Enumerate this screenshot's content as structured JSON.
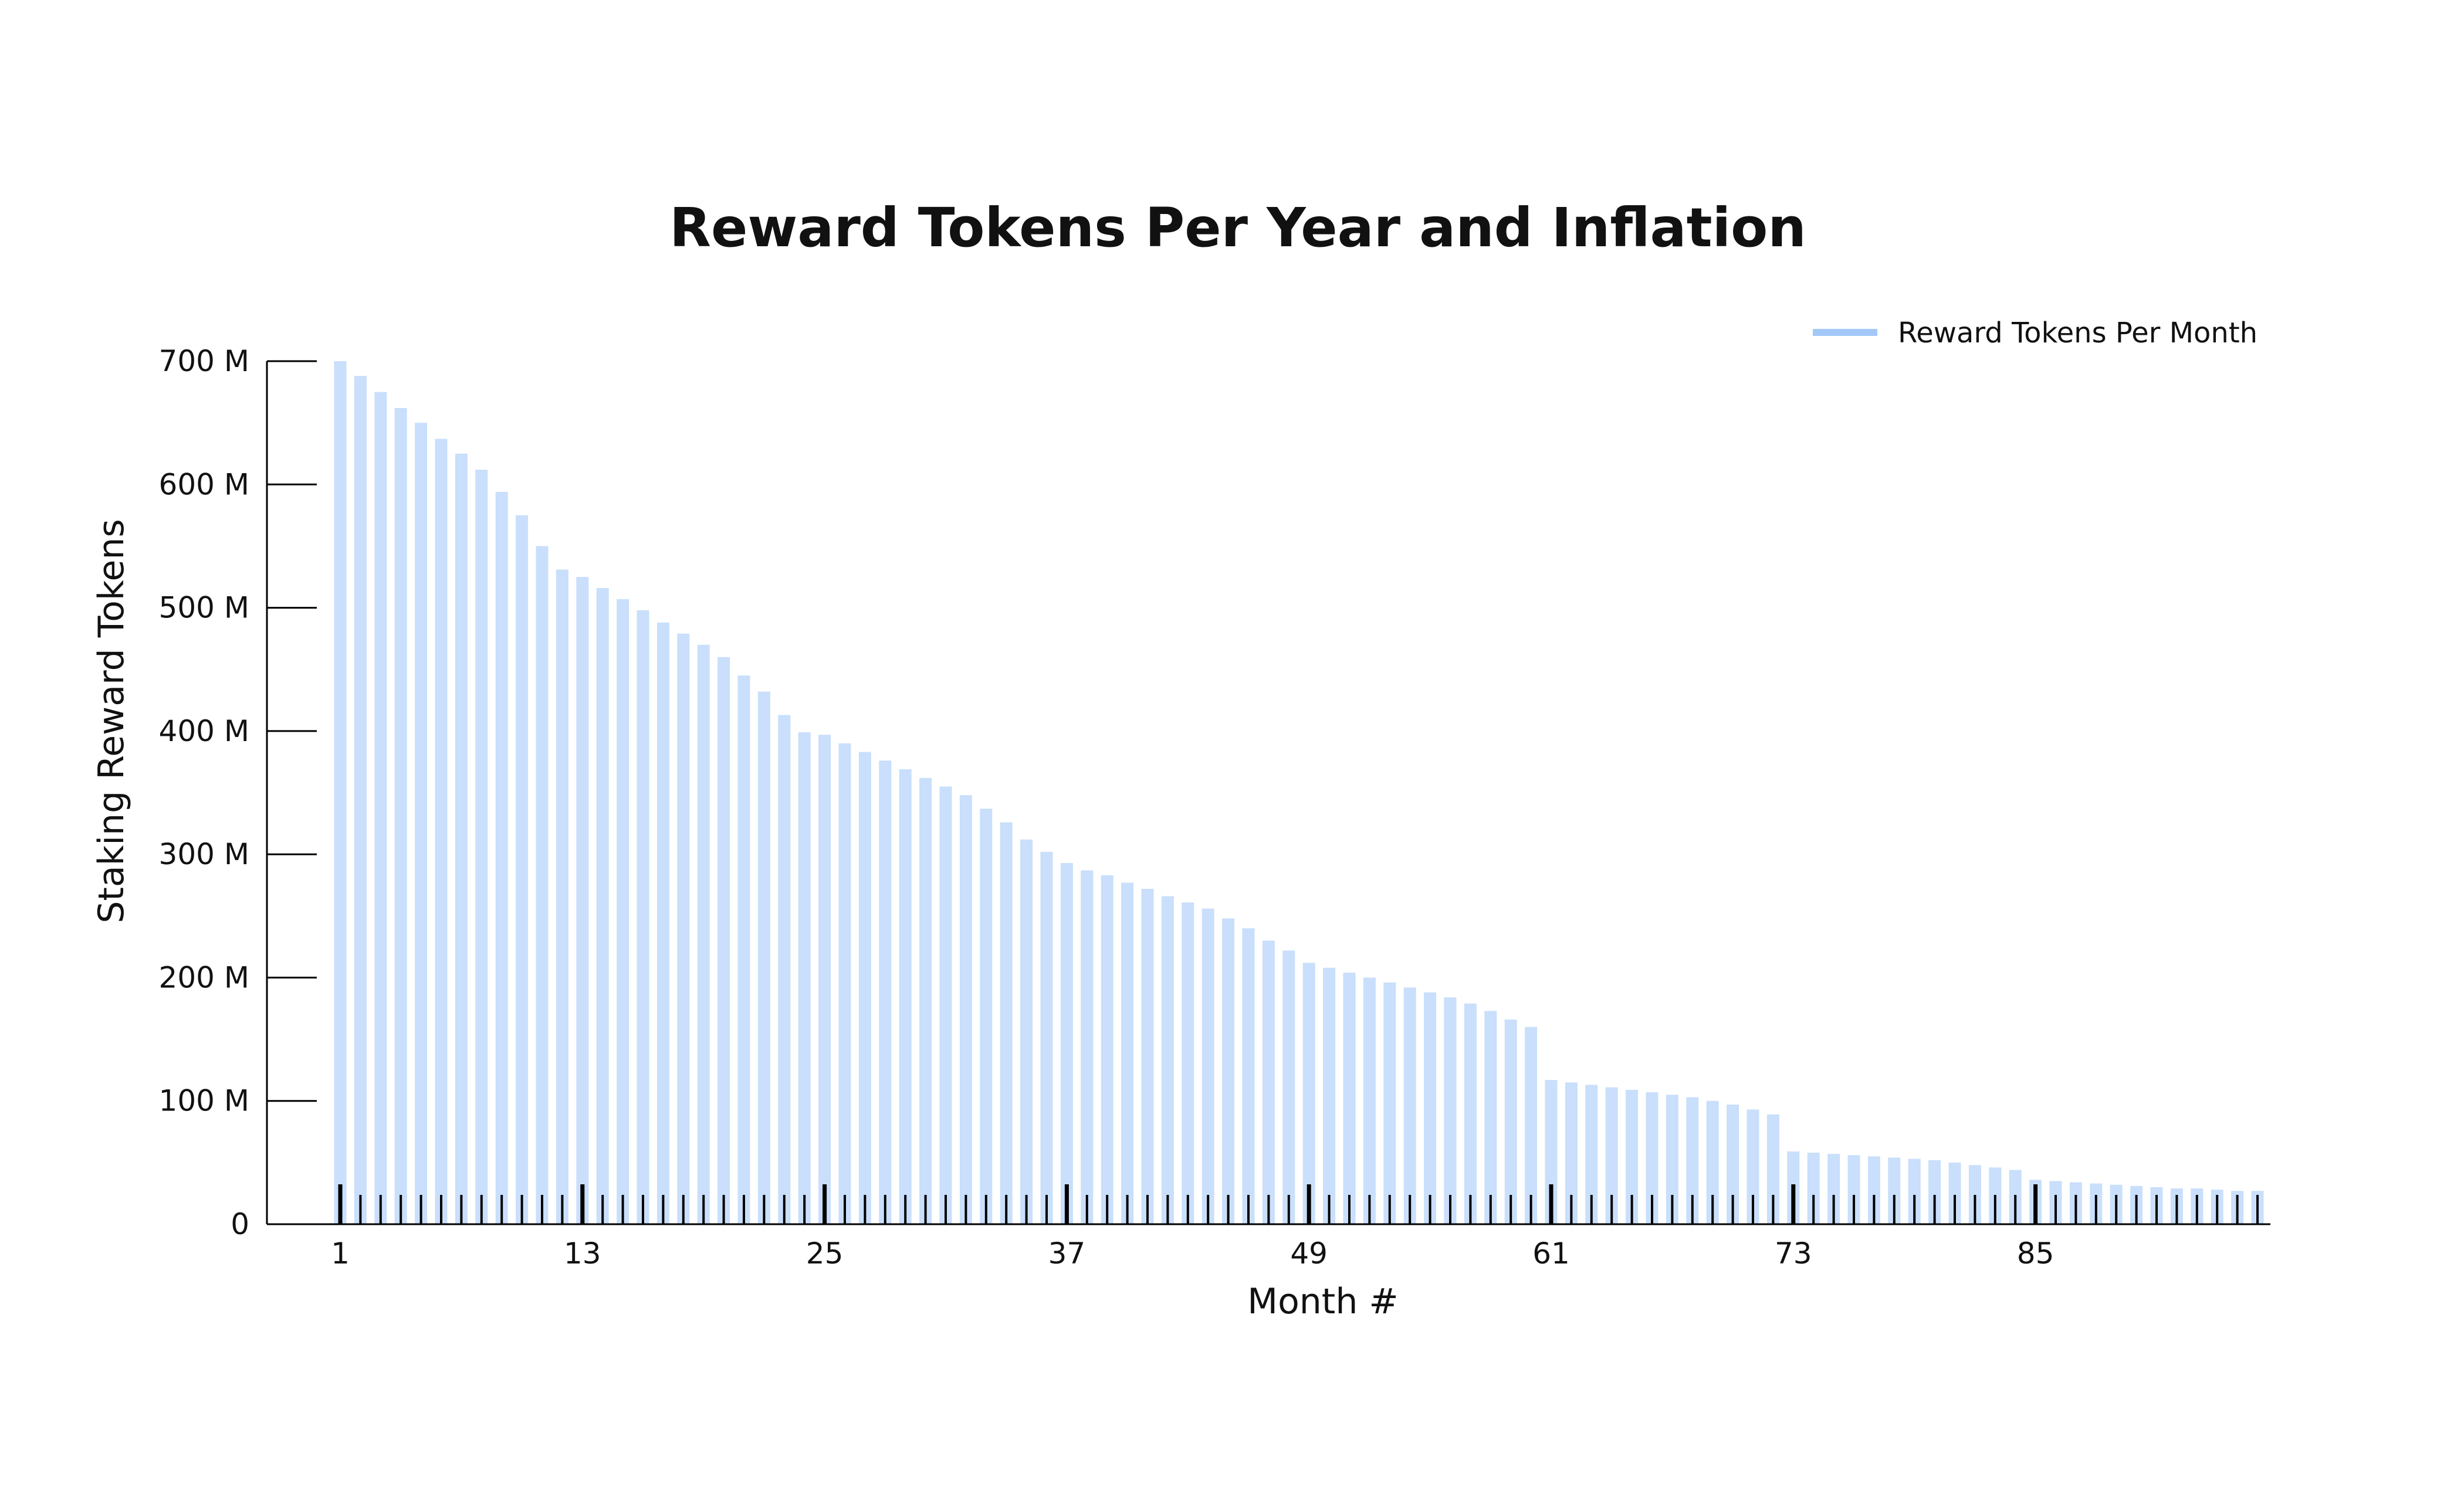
{
  "chart_data": {
    "type": "bar",
    "title": "Reward Tokens Per Year and Inflation",
    "xlabel": "Month #",
    "ylabel": "Staking Reward Tokens",
    "legend": {
      "position": "top-right",
      "entries": [
        "Reward Tokens Per Month"
      ]
    },
    "colors": {
      "bar": "#c9dffb",
      "legend_swatch": "#a3c8f8",
      "axis": "#000000",
      "tick": "#000000"
    },
    "grid": false,
    "ylim": [
      0,
      700000000
    ],
    "yticks": [
      {
        "value": 0,
        "label": "0"
      },
      {
        "value": 100000000,
        "label": "100 M"
      },
      {
        "value": 200000000,
        "label": "200 M"
      },
      {
        "value": 300000000,
        "label": "300 M"
      },
      {
        "value": 400000000,
        "label": "400 M"
      },
      {
        "value": 500000000,
        "label": "500 M"
      },
      {
        "value": 600000000,
        "label": "600 M"
      },
      {
        "value": 700000000,
        "label": "700 M"
      }
    ],
    "xticks": [
      {
        "value": 1,
        "label": "1"
      },
      {
        "value": 13,
        "label": "13"
      },
      {
        "value": 25,
        "label": "25"
      },
      {
        "value": 37,
        "label": "37"
      },
      {
        "value": 49,
        "label": "49"
      },
      {
        "value": 61,
        "label": "61"
      },
      {
        "value": 73,
        "label": "73"
      },
      {
        "value": 85,
        "label": "85"
      }
    ],
    "x": [
      1,
      2,
      3,
      4,
      5,
      6,
      7,
      8,
      9,
      10,
      11,
      12,
      13,
      14,
      15,
      16,
      17,
      18,
      19,
      20,
      21,
      22,
      23,
      24,
      25,
      26,
      27,
      28,
      29,
      30,
      31,
      32,
      33,
      34,
      35,
      36,
      37,
      38,
      39,
      40,
      41,
      42,
      43,
      44,
      45,
      46,
      47,
      48,
      49,
      50,
      51,
      52,
      53,
      54,
      55,
      56,
      57,
      58,
      59,
      60,
      61,
      62,
      63,
      64,
      65,
      66,
      67,
      68,
      69,
      70,
      71,
      72,
      73,
      74,
      75,
      76,
      77,
      78,
      79,
      80,
      81,
      82,
      83,
      84,
      85,
      86,
      87,
      88,
      89,
      90,
      91,
      92,
      93,
      94,
      95,
      96
    ],
    "series": [
      {
        "name": "Reward Tokens Per Month",
        "values": [
          700000000,
          688000000,
          675000000,
          662000000,
          650000000,
          637000000,
          625000000,
          612000000,
          594000000,
          575000000,
          550000000,
          531000000,
          525000000,
          516000000,
          507000000,
          498000000,
          488000000,
          479000000,
          470000000,
          460000000,
          445000000,
          432000000,
          413000000,
          399000000,
          397000000,
          390000000,
          383000000,
          376000000,
          369000000,
          362000000,
          355000000,
          348000000,
          337000000,
          326000000,
          312000000,
          302000000,
          293000000,
          287000000,
          283000000,
          277000000,
          272000000,
          266000000,
          261000000,
          256000000,
          248000000,
          240000000,
          230000000,
          222000000,
          212000000,
          208000000,
          204000000,
          200000000,
          196000000,
          192000000,
          188000000,
          184000000,
          179000000,
          173000000,
          166000000,
          160000000,
          117000000,
          115000000,
          113000000,
          111000000,
          109000000,
          107000000,
          105000000,
          103000000,
          100000000,
          97000000,
          93000000,
          89000000,
          59000000,
          58000000,
          57000000,
          56000000,
          55000000,
          54000000,
          53000000,
          52000000,
          50000000,
          48000000,
          46000000,
          44000000,
          36000000,
          35000000,
          34000000,
          33000000,
          32000000,
          31000000,
          30000000,
          29000000,
          29000000,
          28000000,
          27000000,
          27000000
        ]
      }
    ]
  }
}
